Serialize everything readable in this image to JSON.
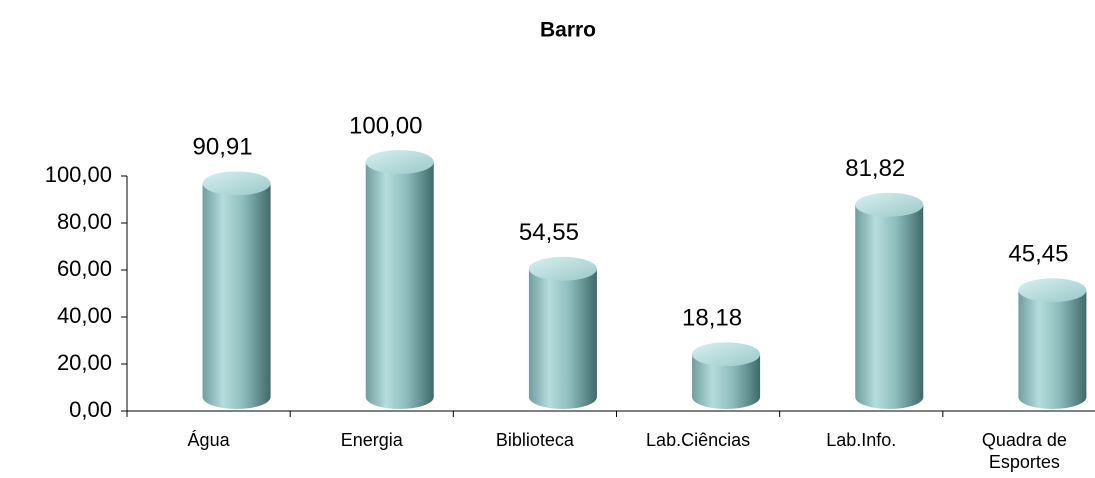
{
  "chart_data": {
    "type": "bar",
    "title": "Barro",
    "categories": [
      "Água",
      "Energia",
      "Biblioteca",
      "Lab.Ciências",
      "Lab.Info.",
      "Quadra de Esportes"
    ],
    "values": [
      90.91,
      100,
      54.55,
      18.18,
      81.82,
      45.45
    ],
    "value_labels": [
      "90,91",
      "100,00",
      "54,55",
      "18,18",
      "81,82",
      "45,45"
    ],
    "color": "#8fc3c3",
    "ylim": [
      0,
      100
    ],
    "yticks": [
      {
        "value": 0,
        "label": "0,00"
      },
      {
        "value": 20,
        "label": "20,00"
      },
      {
        "value": 40,
        "label": "40,00"
      },
      {
        "value": 60,
        "label": "60,00"
      },
      {
        "value": 80,
        "label": "80,00"
      },
      {
        "value": 100,
        "label": "100,00"
      }
    ],
    "grid": false
  }
}
